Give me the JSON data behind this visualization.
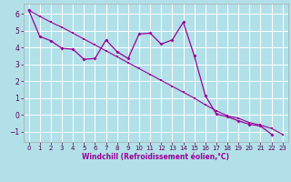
{
  "xlabel": "Windchill (Refroidissement éolien,°C)",
  "background_color": "#b2e0e8",
  "grid_color": "#ffffff",
  "line_color": "#990099",
  "xlim": [
    -0.5,
    23.5
  ],
  "ylim": [
    -1.6,
    6.6
  ],
  "yticks": [
    -1,
    0,
    1,
    2,
    3,
    4,
    5,
    6
  ],
  "xticks": [
    0,
    1,
    2,
    3,
    4,
    5,
    6,
    7,
    8,
    9,
    10,
    11,
    12,
    13,
    14,
    15,
    16,
    17,
    18,
    19,
    20,
    21,
    22,
    23
  ],
  "trend_x": [
    0,
    1,
    2,
    3,
    4,
    5,
    6,
    7,
    8,
    9,
    10,
    11,
    12,
    13,
    14,
    15,
    16,
    17,
    18,
    19,
    20,
    21,
    22,
    23
  ],
  "trend_y": [
    6.2,
    5.85,
    5.5,
    5.2,
    4.85,
    4.5,
    4.15,
    3.8,
    3.45,
    3.1,
    2.75,
    2.4,
    2.05,
    1.7,
    1.35,
    1.0,
    0.6,
    0.25,
    -0.05,
    -0.2,
    -0.45,
    -0.6,
    -0.8,
    -1.15
  ],
  "data_x": [
    0,
    1,
    2,
    3,
    4,
    5,
    6,
    7,
    8,
    9,
    10,
    11,
    12,
    13,
    14,
    15,
    16,
    17,
    18,
    19,
    20,
    21,
    22,
    23
  ],
  "data_y": [
    6.2,
    4.65,
    4.4,
    3.95,
    3.9,
    3.3,
    3.35,
    4.45,
    3.75,
    3.35,
    4.8,
    4.85,
    4.2,
    4.45,
    5.5,
    3.5,
    1.15,
    0.05,
    -0.1,
    -0.35,
    -0.55,
    -0.65,
    -1.15,
    null
  ],
  "tick_fontsize": 5.5,
  "xlabel_fontsize": 5.5
}
